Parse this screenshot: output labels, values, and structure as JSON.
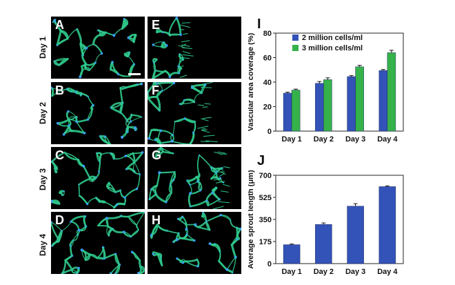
{
  "panels": {
    "row_labels": [
      "Day 1",
      "Day 2",
      "Day 3",
      "Day 4"
    ],
    "left_letters": [
      "A",
      "B",
      "C",
      "D"
    ],
    "right_letters": [
      "E",
      "F",
      "G",
      "H"
    ],
    "colors": {
      "vessel": "#2fc98a",
      "nuclei": "#3aa0ff",
      "background": "#000000"
    }
  },
  "chart_data": [
    {
      "panel_letter": "I",
      "type": "bar",
      "title": "",
      "xlabel": "",
      "ylabel": "Vascular area coverage (%)",
      "categories": [
        "Day 1",
        "Day 2",
        "Day 3",
        "Day 4"
      ],
      "yticks": [
        "0",
        "20",
        "40",
        "60",
        "80"
      ],
      "ylim": [
        0,
        80
      ],
      "legend": "top-left",
      "series": [
        {
          "name": "2 million cells/ml",
          "color": "#3353b8",
          "values": [
            31,
            39,
            44.5,
            49.5
          ],
          "errors": [
            0.8,
            1.5,
            0.8,
            0.8
          ]
        },
        {
          "name": "3 million cells/ml",
          "color": "#35b24a",
          "values": [
            33.5,
            42,
            52.5,
            64
          ],
          "errors": [
            0.8,
            1.5,
            1.2,
            2.0
          ]
        }
      ]
    },
    {
      "panel_letter": "J",
      "type": "bar",
      "title": "",
      "xlabel": "",
      "ylabel": "Average sprout length (μm)",
      "categories": [
        "Day 1",
        "Day 2",
        "Day 3",
        "Day 4"
      ],
      "yticks": [
        "0",
        "175",
        "350",
        "525",
        "700"
      ],
      "ylim": [
        0,
        700
      ],
      "series": [
        {
          "name": "",
          "color": "#3353b8",
          "values": [
            150,
            310,
            455,
            610
          ],
          "errors": [
            5,
            12,
            20,
            6
          ]
        }
      ]
    }
  ]
}
